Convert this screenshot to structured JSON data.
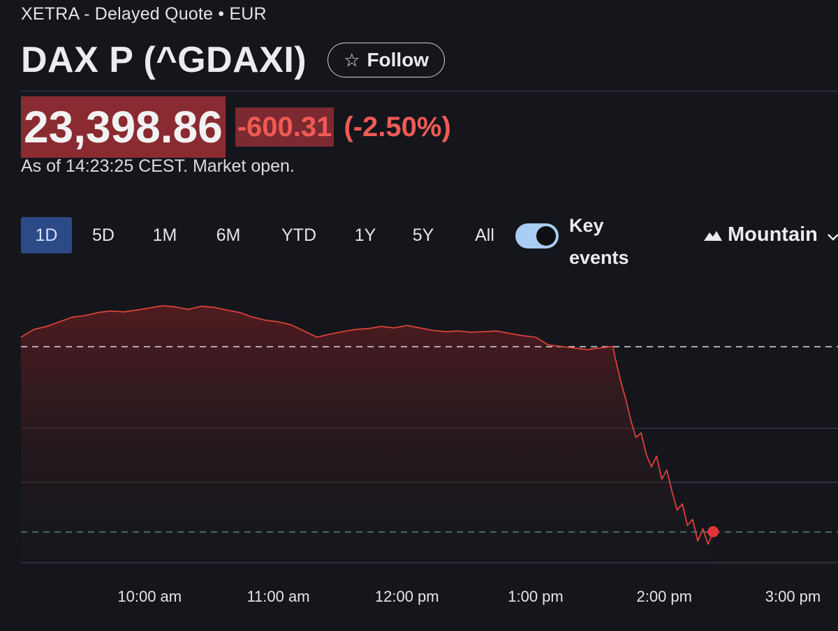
{
  "header": {
    "exchange_line": "XETRA - Delayed Quote • EUR",
    "title": "DAX P (^GDAXI)",
    "follow_label": "Follow",
    "follow_icon": "star-outline-icon"
  },
  "quote": {
    "price": "23,398.86",
    "change": "-600.31",
    "change_pct": "(-2.50%)",
    "as_of": "As of 14:23:25 CEST. Market open.",
    "negative_color": "#f05a55"
  },
  "ranges": [
    {
      "label": "1D",
      "active": true
    },
    {
      "label": "5D",
      "active": false
    },
    {
      "label": "1M",
      "active": false
    },
    {
      "label": "6M",
      "active": false
    },
    {
      "label": "YTD",
      "active": false
    },
    {
      "label": "1Y",
      "active": false
    },
    {
      "label": "5Y",
      "active": false
    },
    {
      "label": "All",
      "active": false
    }
  ],
  "controls": {
    "key_events_label_1": "Key",
    "key_events_label_2": "events",
    "key_events_on": true,
    "chart_type_label": "Mountain",
    "chart_type_icon": "mountain-icon"
  },
  "chart_data": {
    "type": "area",
    "x_tick_labels": [
      "10:00 am",
      "11:00 am",
      "12:00 pm",
      "1:00 pm",
      "2:00 pm",
      "3:00 pm"
    ],
    "x_tick_hours": [
      10,
      11,
      12,
      13,
      14,
      15
    ],
    "x_range_hours": [
      9.0,
      15.35
    ],
    "y_range": [
      23300,
      24150
    ],
    "previous_close": 23999.17,
    "current_price": 23398.86,
    "gridlines": [
      23560,
      23735
    ],
    "grid": true,
    "line_color": "#d9413a",
    "series": [
      {
        "x": [
          9.0,
          9.1,
          9.2,
          9.3,
          9.4,
          9.5,
          9.6,
          9.7,
          9.8,
          9.9,
          10.0,
          10.1,
          10.2,
          10.3,
          10.4,
          10.5,
          10.6,
          10.7,
          10.8,
          10.9,
          11.0,
          11.1,
          11.2,
          11.3,
          11.4,
          11.5,
          11.6,
          11.7,
          11.8,
          11.9,
          12.0,
          12.1,
          12.2,
          12.3,
          12.4,
          12.5,
          12.6,
          12.7,
          12.8,
          12.9,
          13.0,
          13.1,
          13.2,
          13.3,
          13.4,
          13.6,
          13.62,
          13.66,
          13.7,
          13.74,
          13.78,
          13.82,
          13.86,
          13.9,
          13.94,
          13.98,
          14.02,
          14.06,
          14.1,
          14.14,
          14.18,
          14.22,
          14.26,
          14.3,
          14.34,
          14.38
        ],
        "y": [
          24030,
          24055,
          24065,
          24080,
          24095,
          24100,
          24110,
          24115,
          24112,
          24118,
          24125,
          24132,
          24128,
          24120,
          24130,
          24127,
          24118,
          24110,
          24095,
          24085,
          24080,
          24070,
          24050,
          24030,
          24040,
          24048,
          24055,
          24058,
          24065,
          24060,
          24068,
          24060,
          24052,
          24048,
          24050,
          24046,
          24048,
          24050,
          24042,
          24035,
          24030,
          24005,
          24000,
          23995,
          23990,
          24000,
          23960,
          23890,
          23830,
          23760,
          23705,
          23720,
          23650,
          23610,
          23645,
          23570,
          23600,
          23530,
          23470,
          23490,
          23420,
          23440,
          23370,
          23410,
          23360,
          23400
        ]
      }
    ]
  }
}
